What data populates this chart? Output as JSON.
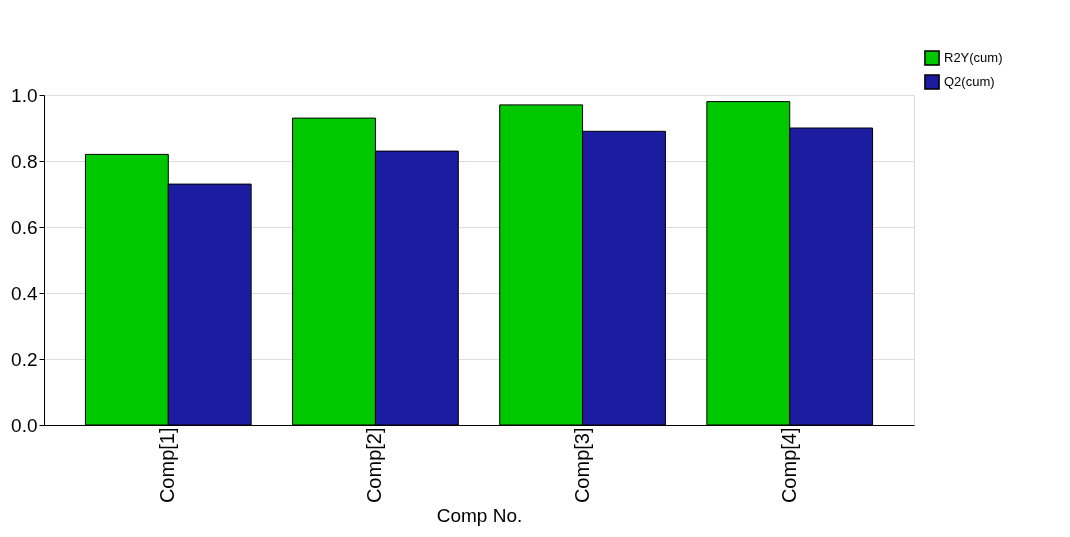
{
  "chart_data": {
    "type": "bar",
    "xlabel": "Comp No.",
    "categories": [
      "Comp[1]",
      "Comp[2]",
      "Comp[3]",
      "Comp[4]"
    ],
    "series": [
      {
        "name": "R2Y(cum)",
        "color": "#00c800",
        "values": [
          0.82,
          0.93,
          0.97,
          0.98
        ]
      },
      {
        "name": "Q2(cum)",
        "color": "#1c1ca0",
        "values": [
          0.73,
          0.83,
          0.89,
          0.9
        ]
      }
    ],
    "ylim": [
      0,
      1.0
    ],
    "yticks": [
      {
        "value": 0,
        "label": "0.0"
      },
      0.2,
      0.4,
      0.6,
      0.8,
      {
        "value": 1,
        "label": "1.0"
      }
    ],
    "grid": "y",
    "legend": "top right"
  }
}
